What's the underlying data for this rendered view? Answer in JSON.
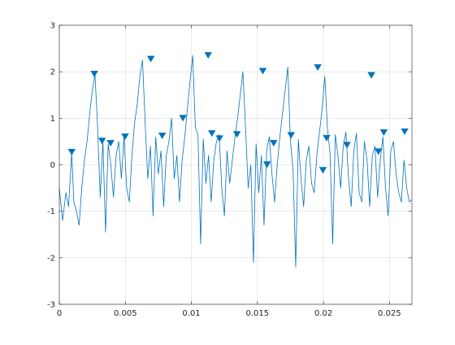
{
  "chart_data": {
    "type": "line",
    "title": "",
    "xlabel": "",
    "ylabel": "",
    "xlim": [
      0,
      0.0267
    ],
    "ylim": [
      -3,
      3
    ],
    "grid": true,
    "xticks": [
      0,
      0.005,
      0.01,
      0.015,
      0.02,
      0.025
    ],
    "xtick_labels": [
      "0",
      "0.005",
      "0.01",
      "0.015",
      "0.02",
      "0.025"
    ],
    "yticks": [
      -3,
      -2,
      -1,
      0,
      1,
      2,
      3
    ],
    "ytick_labels": [
      "-3",
      "-2",
      "-1",
      "0",
      "1",
      "2",
      "3"
    ],
    "colors": {
      "signal": "#0072bd",
      "peak_marker": "#0072bd",
      "grid": "#dcdcdc",
      "axes": "#262626"
    },
    "series": [
      {
        "kind": "line",
        "x": [
          0,
          0.00025,
          0.0005,
          0.0007,
          0.00094,
          0.0011,
          0.0013,
          0.0015,
          0.0017,
          0.0019,
          0.0021,
          0.0023,
          0.0025,
          0.0027,
          0.0029,
          0.0031,
          0.0033,
          0.0035,
          0.0037,
          0.0039,
          0.0041,
          0.0043,
          0.0045,
          0.0047,
          0.0049,
          0.0051,
          0.0053,
          0.0055,
          0.0057,
          0.0059,
          0.0061,
          0.0063,
          0.0065,
          0.0067,
          0.0069,
          0.0071,
          0.0073,
          0.0075,
          0.0077,
          0.0079,
          0.0081,
          0.0083,
          0.0085,
          0.0087,
          0.0089,
          0.0091,
          0.0093,
          0.0095,
          0.0097,
          0.0099,
          0.0101,
          0.0103,
          0.0105,
          0.0107,
          0.0109,
          0.0111,
          0.0113,
          0.0115,
          0.0117,
          0.0119,
          0.0121,
          0.0123,
          0.0125,
          0.0127,
          0.0129,
          0.0131,
          0.0133,
          0.0135,
          0.0137,
          0.0139,
          0.0141,
          0.0143,
          0.0145,
          0.0147,
          0.0149,
          0.0151,
          0.0153,
          0.0155,
          0.0157,
          0.0159,
          0.0161,
          0.0163,
          0.0165,
          0.0167,
          0.0169,
          0.0171,
          0.0173,
          0.0175,
          0.0177,
          0.0179,
          0.0181,
          0.0183,
          0.0185,
          0.0187,
          0.0189,
          0.0191,
          0.0193,
          0.0195,
          0.0197,
          0.0199,
          0.0201,
          0.0203,
          0.0205,
          0.0207,
          0.0209,
          0.0211,
          0.0213,
          0.0215,
          0.0217,
          0.0219,
          0.0221,
          0.0223,
          0.0225,
          0.0227,
          0.0229,
          0.0231,
          0.0233,
          0.0235,
          0.0237,
          0.0239,
          0.0241,
          0.0243,
          0.0245,
          0.0247,
          0.0249,
          0.0251,
          0.0253,
          0.0255,
          0.0257,
          0.0259,
          0.0261,
          0.0263,
          0.0265,
          0.0267
        ],
        "y": [
          -0.5,
          -1.2,
          -0.6,
          -0.9,
          0.25,
          -0.8,
          -1.0,
          -1.3,
          -0.5,
          0.1,
          0.5,
          1.1,
          1.6,
          1.95,
          0.8,
          -0.7,
          0.5,
          -1.45,
          0.45,
          0.0,
          -0.7,
          0.2,
          0.5,
          -0.3,
          0.6,
          -0.5,
          -0.8,
          0.2,
          0.9,
          1.3,
          1.9,
          2.25,
          0.9,
          -0.3,
          0.4,
          -1.1,
          0.6,
          -0.2,
          0.3,
          -0.9,
          0.2,
          0.5,
          1.0,
          -0.3,
          0.2,
          -0.8,
          0.1,
          0.6,
          1.2,
          1.8,
          2.35,
          0.8,
          0.65,
          -1.7,
          0.55,
          -0.4,
          0.2,
          -0.8,
          0.1,
          0.5,
          0.65,
          -0.5,
          -1.1,
          0.3,
          -0.4,
          0.1,
          0.6,
          1.0,
          1.5,
          2.0,
          0.8,
          -0.5,
          0.0,
          -2.1,
          0.45,
          -0.6,
          0.2,
          -1.3,
          0.3,
          0.6,
          -0.2,
          -0.8,
          0.0,
          0.6,
          1.1,
          1.6,
          2.1,
          0.5,
          -0.1,
          -2.2,
          0.55,
          -0.3,
          -0.9,
          0.1,
          0.4,
          -0.4,
          -0.6,
          0.2,
          0.7,
          1.2,
          1.9,
          0.8,
          0.25,
          -1.7,
          0.65,
          0.2,
          -0.5,
          0.4,
          0.7,
          -0.3,
          -0.9,
          0.3,
          0.68,
          -0.6,
          -0.8,
          0.5,
          0.1,
          -0.9,
          0.2,
          0.4,
          -0.7,
          0.1,
          0.6,
          -0.5,
          -1.1,
          0.3,
          0.5,
          -0.2,
          -0.6,
          -0.8,
          0.1,
          -0.5,
          -0.8,
          -0.75
        ]
      },
      {
        "kind": "markers",
        "marker": "down-triangle",
        "x": [
          0.00094,
          0.00265,
          0.00324,
          0.00388,
          0.00498,
          0.00693,
          0.00779,
          0.00936,
          0.01127,
          0.01155,
          0.01213,
          0.01345,
          0.01541,
          0.01573,
          0.01623,
          0.01755,
          0.01957,
          0.01996,
          0.02024,
          0.02178,
          0.02363,
          0.02416,
          0.02457,
          0.02615
        ],
        "y": [
          0.27,
          1.95,
          0.51,
          0.46,
          0.6,
          2.27,
          0.62,
          1.0,
          2.35,
          0.67,
          0.56,
          0.65,
          2.01,
          0.0,
          0.46,
          0.63,
          2.09,
          -0.12,
          0.57,
          0.42,
          1.92,
          0.28,
          0.69,
          0.71
        ]
      }
    ]
  }
}
